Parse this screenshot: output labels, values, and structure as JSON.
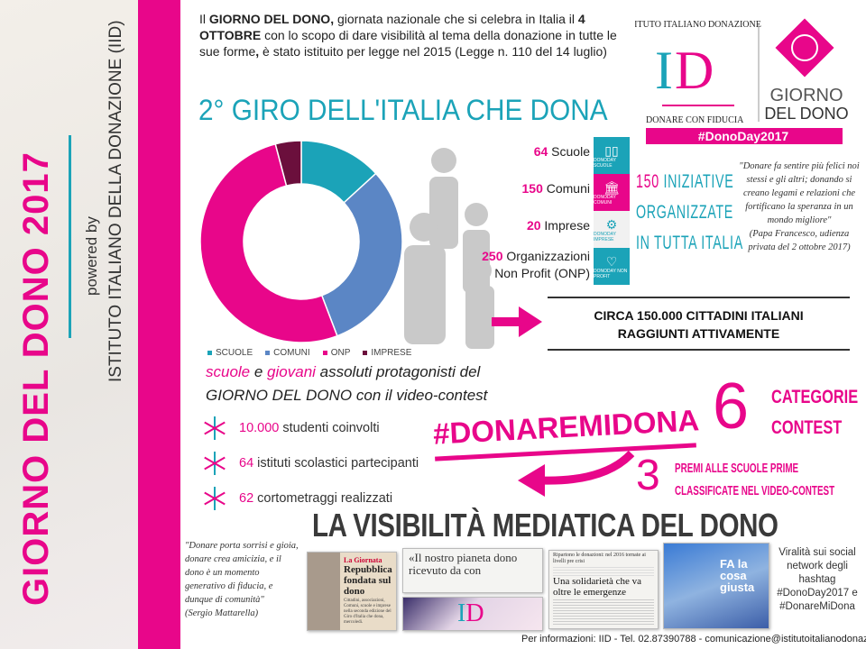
{
  "sidebar": {
    "title": "GIORNO DEL DONO 2017",
    "powered_by": "powered by",
    "organization": "ISTITUTO ITALIANO DELLA DONAZIONE (IID)"
  },
  "intro": {
    "p1": "Il ",
    "b1": "GIORNO DEL DONO,",
    "p2": " giornata nazionale che si celebra in Italia il ",
    "b2": "4 OTTOBRE",
    "p3": " con lo scopo di dare visibilità al tema della donazione in tutte le sue forme",
    "b3": ",",
    "p4": " è stato istituito per legge nel 2015 (Legge n. 110 del 14 luglio)"
  },
  "headline": "2° GIRO DELL'ITALIA CHE DONA",
  "logo": {
    "arc_text": "ISTITUTO ITALIANO DONAZIONE",
    "initials": "ID",
    "tagline": "DONARE CON FIDUCIA",
    "brand_line1": "GIORNO",
    "brand_line2": "DEL DONO",
    "hashtag": "#DonoDay2017"
  },
  "colors": {
    "pink": "#e8068a",
    "teal": "#1ba3b8",
    "blue": "#5b86c5",
    "dark": "#6b0f3c",
    "gray": "#c9c9c9"
  },
  "stats": [
    {
      "num": "64",
      "label": " Scuole",
      "icon": "book-icon",
      "icon_caption": "DONODAY SCUOLE",
      "icon_color": "#1ba3b8"
    },
    {
      "num": "150",
      "label": " Comuni",
      "icon": "town-hall-icon",
      "icon_caption": "DONODAY COMUNI",
      "icon_color": "#e8068a"
    },
    {
      "num": "20",
      "label": " Imprese",
      "icon": "gears-icon",
      "icon_caption": "DONODAY IMPRESE",
      "icon_color": "#f1f1f1"
    },
    {
      "num": "250",
      "label": " Organizzazioni",
      "label2": "Non Profit (ONP)",
      "icon": "heart-icon",
      "icon_caption": "DONODAY NON PROFIT",
      "icon_color": "#1ba3b8"
    }
  ],
  "iniziative": {
    "num": "150",
    "l1": " INIZIATIVE",
    "l2": "ORGANIZZATE",
    "l3": "IN TUTTA ITALIA"
  },
  "quote_pope": {
    "text": "\"Donare fa sentire più felici noi stessi e gli altri; donando si creano legami e relazioni che fortificano la speranza in un mondo migliore\"",
    "source": "(Papa Francesco, udienza privata del 2 ottobre 2017)"
  },
  "reach": {
    "l1": "CIRCA 150.000 CITTADINI ITALIANI",
    "l2": "RAGGIUNTI ATTIVAMENTE"
  },
  "chart_data": {
    "type": "pie",
    "donut": true,
    "categories": [
      "SCUOLE",
      "COMUNI",
      "ONP",
      "IMPRESE"
    ],
    "values": [
      64,
      150,
      250,
      20
    ],
    "colors": [
      "#1ba3b8",
      "#5b86c5",
      "#e8068a",
      "#6b0f3c"
    ],
    "legend": "bottom"
  },
  "contest": {
    "w1": "scuole",
    "w2": " e ",
    "w3": "giovani",
    "w4": " assoluti protagonisti del",
    "l2": "GIORNO DEL DONO con il video-contest"
  },
  "bullets": [
    {
      "num": "10.000",
      "text": " studenti coinvolti"
    },
    {
      "num": "64",
      "text": " istituti scolastici partecipanti"
    },
    {
      "num": "62",
      "text": " cortometraggi realizzati"
    }
  ],
  "hashtag_contest": "#DONAREMIDONA",
  "categories": {
    "num": "6",
    "l1": "CATEGORIE",
    "l2": "CONTEST"
  },
  "prizes": {
    "num": "3",
    "l1": "PREMI ALLE SCUOLE PRIME",
    "l2": "CLASSIFICATE NEL VIDEO-CONTEST"
  },
  "media_title": "LA VISIBILITÀ MEDIATICA DEL DONO",
  "quote_president": {
    "text": "\"Donare porta sorrisi e gioia, donare crea amicizia, e il dono è un momento generativo di fiducia, e dunque di comunità\"",
    "source": "(Sergio Mattarella)"
  },
  "clippings": [
    {
      "kicker": "La Giornata",
      "headline": "Repubblica fondata sul dono",
      "body": "Cittadini, associazioni, Comuni, scuole e imprese nella seconda edizione del Giro d'Italia che dona, mercoledì."
    },
    {
      "headline": "«Il nostro pianeta dono ricevuto da con"
    },
    {
      "kicker": "Ripartono le donazioni: nel 2016 tornate ai livelli pre crisi",
      "headline": "Una solidarietà che va oltre le emergenze"
    },
    {
      "headline": "FA la cosa giusta"
    }
  ],
  "viral": "Viralità sui social network degli hashtag #DonoDay2017 e #DonareMiDona",
  "footer": "Per informazioni: IID - Tel. 02.87390788 - comunicazione@istitutoitalianodonazione.it"
}
